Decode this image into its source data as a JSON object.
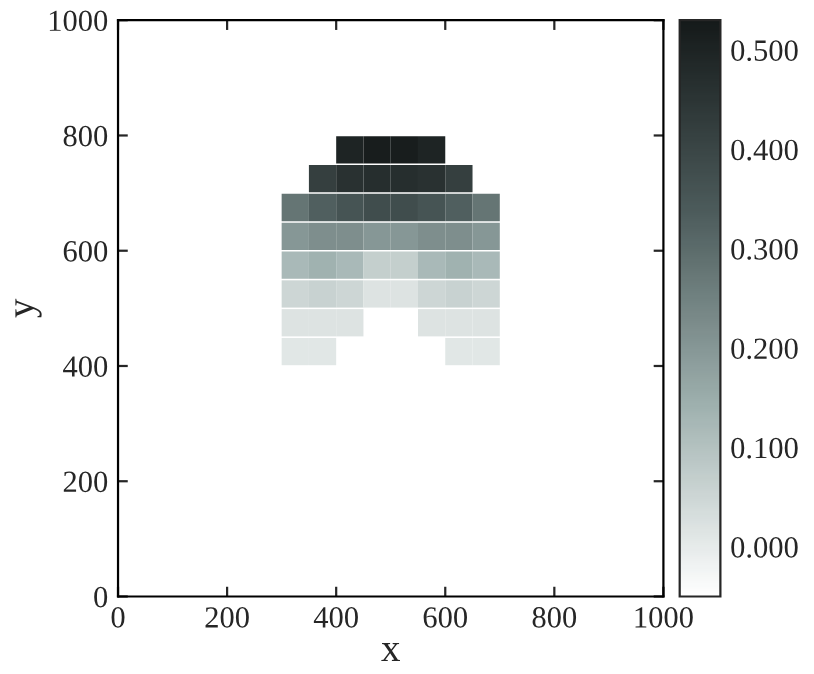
{
  "chart_data": {
    "type": "scatter",
    "xlabel": "x",
    "ylabel": "y",
    "marker": "square",
    "xlim": [
      0,
      1000
    ],
    "ylim": [
      0,
      1000
    ],
    "xticks": [
      0,
      200,
      400,
      600,
      800,
      1000
    ],
    "yticks": [
      0,
      200,
      400,
      600,
      800,
      1000
    ],
    "clim": [
      -0.05,
      0.53
    ],
    "cticks": [
      {
        "value": 0,
        "label": "0.000"
      },
      {
        "value": 0.1,
        "label": "0.100"
      },
      {
        "value": 0.2,
        "label": "0.200"
      },
      {
        "value": 0.3,
        "label": "0.300"
      },
      {
        "value": 0.4,
        "label": "0.400"
      },
      {
        "value": 0.5,
        "label": "0.500"
      }
    ],
    "x": [
      425,
      475,
      525,
      575,
      375,
      425,
      475,
      525,
      575,
      625,
      325,
      375,
      425,
      475,
      525,
      575,
      625,
      675,
      325,
      375,
      425,
      475,
      525,
      575,
      625,
      675,
      325,
      375,
      425,
      475,
      525,
      575,
      625,
      675,
      325,
      375,
      425,
      475,
      525,
      575,
      625,
      675,
      325,
      375,
      425,
      575,
      625,
      675,
      325,
      375,
      625,
      675
    ],
    "values": [
      775,
      775,
      775,
      775,
      725,
      725,
      725,
      725,
      725,
      725,
      675,
      675,
      675,
      675,
      675,
      675,
      675,
      675,
      625,
      625,
      625,
      625,
      625,
      625,
      625,
      625,
      575,
      575,
      575,
      575,
      575,
      575,
      575,
      575,
      525,
      525,
      525,
      525,
      525,
      525,
      525,
      525,
      475,
      475,
      475,
      475,
      475,
      475,
      425,
      425,
      425,
      425
    ],
    "cvalues": [
      0.5,
      0.52,
      0.52,
      0.5,
      0.42,
      0.46,
      0.47,
      0.47,
      0.46,
      0.42,
      0.28,
      0.33,
      0.36,
      0.38,
      0.38,
      0.36,
      0.33,
      0.28,
      0.2,
      0.22,
      0.22,
      0.2,
      0.2,
      0.22,
      0.22,
      0.2,
      0.12,
      0.14,
      0.12,
      0.07,
      0.07,
      0.12,
      0.14,
      0.12,
      0.05,
      0.06,
      0.05,
      0.02,
      0.02,
      0.05,
      0.06,
      0.05,
      0.02,
      0.02,
      0.02,
      0.02,
      0.02,
      0.02,
      0.01,
      0.01,
      0.01,
      0.01
    ]
  }
}
